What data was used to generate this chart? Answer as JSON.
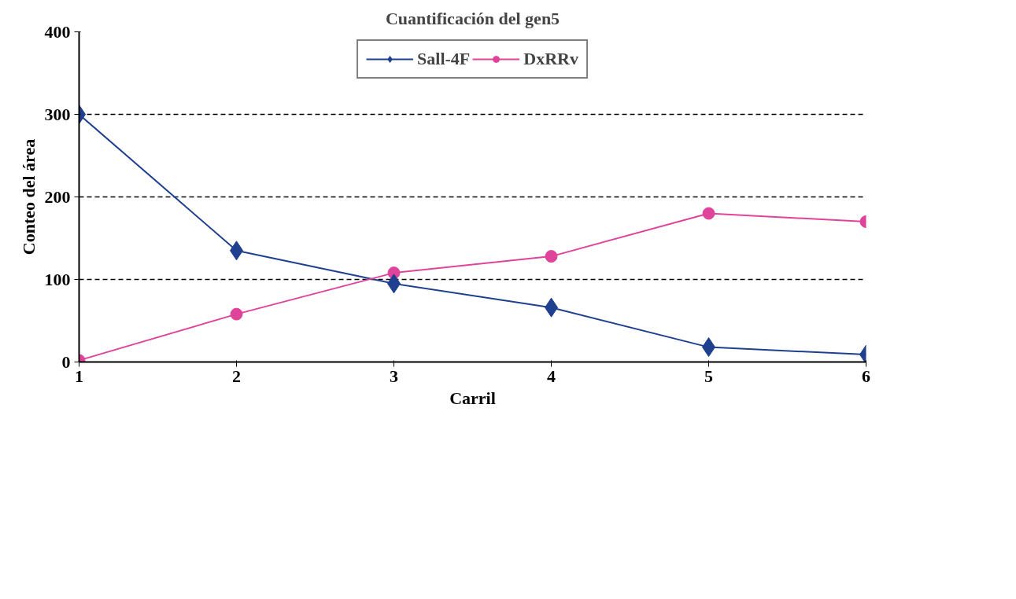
{
  "chart_data": {
    "type": "line",
    "title": "Cuantificación del gen5",
    "xlabel": "Carril",
    "ylabel": "Conteo del área",
    "x": [
      1,
      2,
      3,
      4,
      5,
      6
    ],
    "xlim": [
      1,
      6
    ],
    "xticks": [
      1,
      2,
      3,
      4,
      5,
      6
    ],
    "ylim": [
      0,
      400
    ],
    "yticks": [
      0,
      100,
      200,
      300,
      400
    ],
    "series": [
      {
        "name": "Sall-4F",
        "color": "#1f3f8f",
        "marker": "diamond",
        "values": [
          300,
          135,
          95,
          66,
          18,
          9
        ]
      },
      {
        "name": "DxRRv",
        "color": "#e0449a",
        "marker": "circle",
        "values": [
          2,
          58,
          108,
          128,
          180,
          170
        ]
      }
    ],
    "grid": "y",
    "legend": "top",
    "line_style": "solid"
  }
}
